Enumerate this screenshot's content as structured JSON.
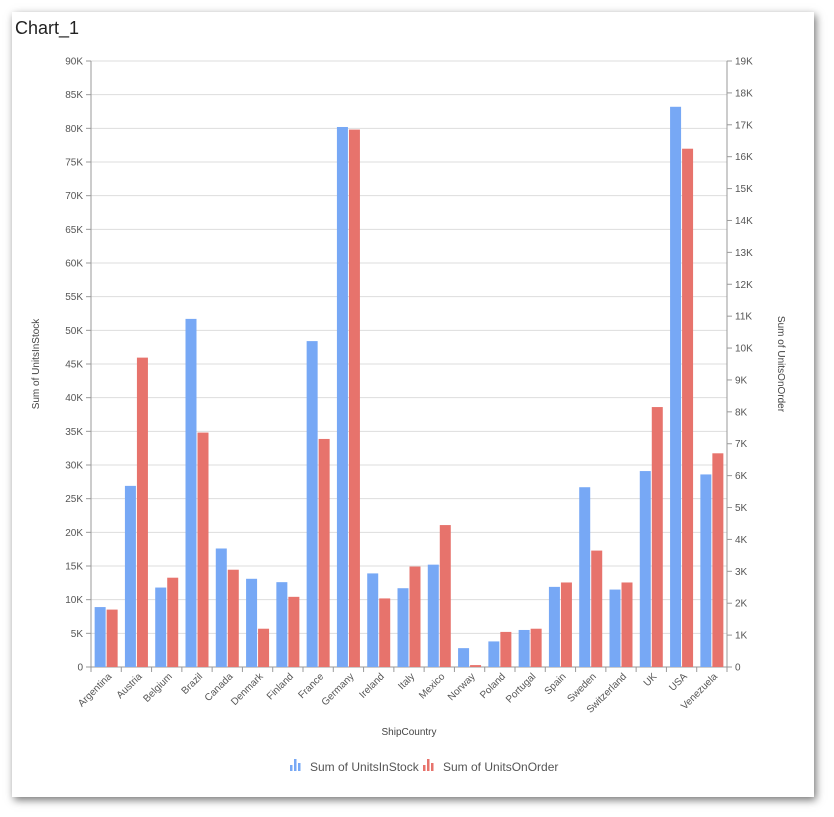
{
  "chart": {
    "title": "Chart_1"
  },
  "chart_data": {
    "type": "bar",
    "title": "Chart_1",
    "xlabel": "ShipCountry",
    "ylabel": "Sum of UnitsInStock",
    "y2label": "Sum of UnitsOnOrder",
    "ylim": [
      0,
      90000
    ],
    "y2lim": [
      0,
      19000
    ],
    "yticks": [
      "0",
      "5K",
      "10K",
      "15K",
      "20K",
      "25K",
      "30K",
      "35K",
      "40K",
      "45K",
      "50K",
      "55K",
      "60K",
      "65K",
      "70K",
      "75K",
      "80K",
      "85K",
      "90K"
    ],
    "y2ticks": [
      "0",
      "1K",
      "2K",
      "3K",
      "4K",
      "5K",
      "6K",
      "7K",
      "8K",
      "9K",
      "10K",
      "11K",
      "12K",
      "13K",
      "14K",
      "15K",
      "16K",
      "17K",
      "18K",
      "19K"
    ],
    "grid": true,
    "legend_position": "bottom",
    "categories": [
      "Argentina",
      "Austria",
      "Belgium",
      "Brazil",
      "Canada",
      "Denmark",
      "Finland",
      "France",
      "Germany",
      "Ireland",
      "Italy",
      "Mexico",
      "Norway",
      "Poland",
      "Portugal",
      "Spain",
      "Sweden",
      "Switzerland",
      "UK",
      "USA",
      "Venezuela"
    ],
    "series": [
      {
        "name": "Sum of UnitsInStock",
        "axis": "left",
        "color": "#77a8f5",
        "values": [
          8900,
          26900,
          11800,
          51700,
          17600,
          13100,
          12600,
          48400,
          80200,
          13900,
          11700,
          15200,
          2800,
          3800,
          5500,
          11900,
          26700,
          11500,
          29100,
          83200,
          28600
        ]
      },
      {
        "name": "Sum of UnitsOnOrder",
        "axis": "right",
        "color": "#e7736c",
        "values": [
          1800,
          9700,
          2800,
          7350,
          3050,
          1200,
          2200,
          7150,
          16850,
          2150,
          3150,
          4450,
          60,
          1100,
          1200,
          2650,
          3650,
          2650,
          8150,
          16250,
          6700
        ]
      }
    ]
  }
}
